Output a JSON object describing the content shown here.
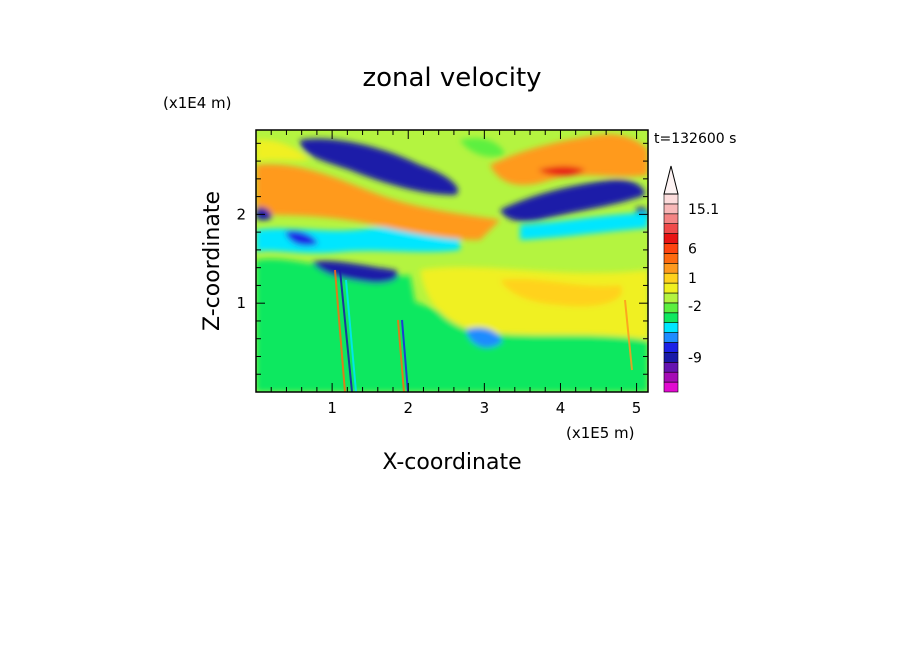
{
  "chart_data": {
    "type": "heatmap",
    "title": "zonal velocity",
    "xlabel": "X-coordinate",
    "ylabel": "Z-coordinate",
    "x_unit": "(x1E5 m)",
    "y_unit": "(x1E4 m)",
    "time_label": "t=132600 s",
    "xlim": [
      0,
      5.15
    ],
    "ylim": [
      0,
      2.95
    ],
    "x_ticks": [
      "1",
      "2",
      "3",
      "4",
      "5"
    ],
    "x_tick_values": [
      1,
      2,
      3,
      4,
      5
    ],
    "y_ticks": [
      "1",
      "2"
    ],
    "y_tick_values": [
      1,
      2
    ],
    "colorbar": {
      "colors": [
        "#e20ad0",
        "#a60cb5",
        "#6614b0",
        "#1a1aa8",
        "#1c22e6",
        "#1e8cff",
        "#00e6ff",
        "#10e860",
        "#5cf040",
        "#b4f440",
        "#f0f020",
        "#ffd21e",
        "#ff9a1e",
        "#ff6a10",
        "#ff4410",
        "#e81414",
        "#f04a4a",
        "#f48484",
        "#f8b8b8",
        "#fcdcdc"
      ],
      "labels": [
        "15.1",
        "6",
        "1",
        "-2",
        "-9"
      ],
      "label_levels": [
        18.5,
        14.5,
        11.5,
        8.7,
        3.5
      ]
    },
    "field_bands": [
      {
        "x": [
          0,
          5.15
        ],
        "z": [
          2.55,
          2.95
        ],
        "value": "orange/red"
      },
      {
        "x": [
          0.6,
          2.7
        ],
        "z": [
          2.35,
          2.95
        ],
        "value": "dark blue"
      },
      {
        "x": [
          3.3,
          5.15
        ],
        "z": [
          1.95,
          2.4
        ],
        "value": "dark blue"
      },
      {
        "x": [
          0,
          3.2
        ],
        "z": [
          1.8,
          2.4
        ],
        "value": "orange"
      },
      {
        "x": [
          0.2,
          1.8
        ],
        "z": [
          1.2,
          1.7
        ],
        "value": "blue"
      },
      {
        "x": [
          2.5,
          5.15
        ],
        "z": [
          0.3,
          1.5
        ],
        "value": "yellow"
      },
      {
        "x": [
          0,
          2.5
        ],
        "z": [
          0,
          1.2
        ],
        "value": "green"
      }
    ]
  }
}
